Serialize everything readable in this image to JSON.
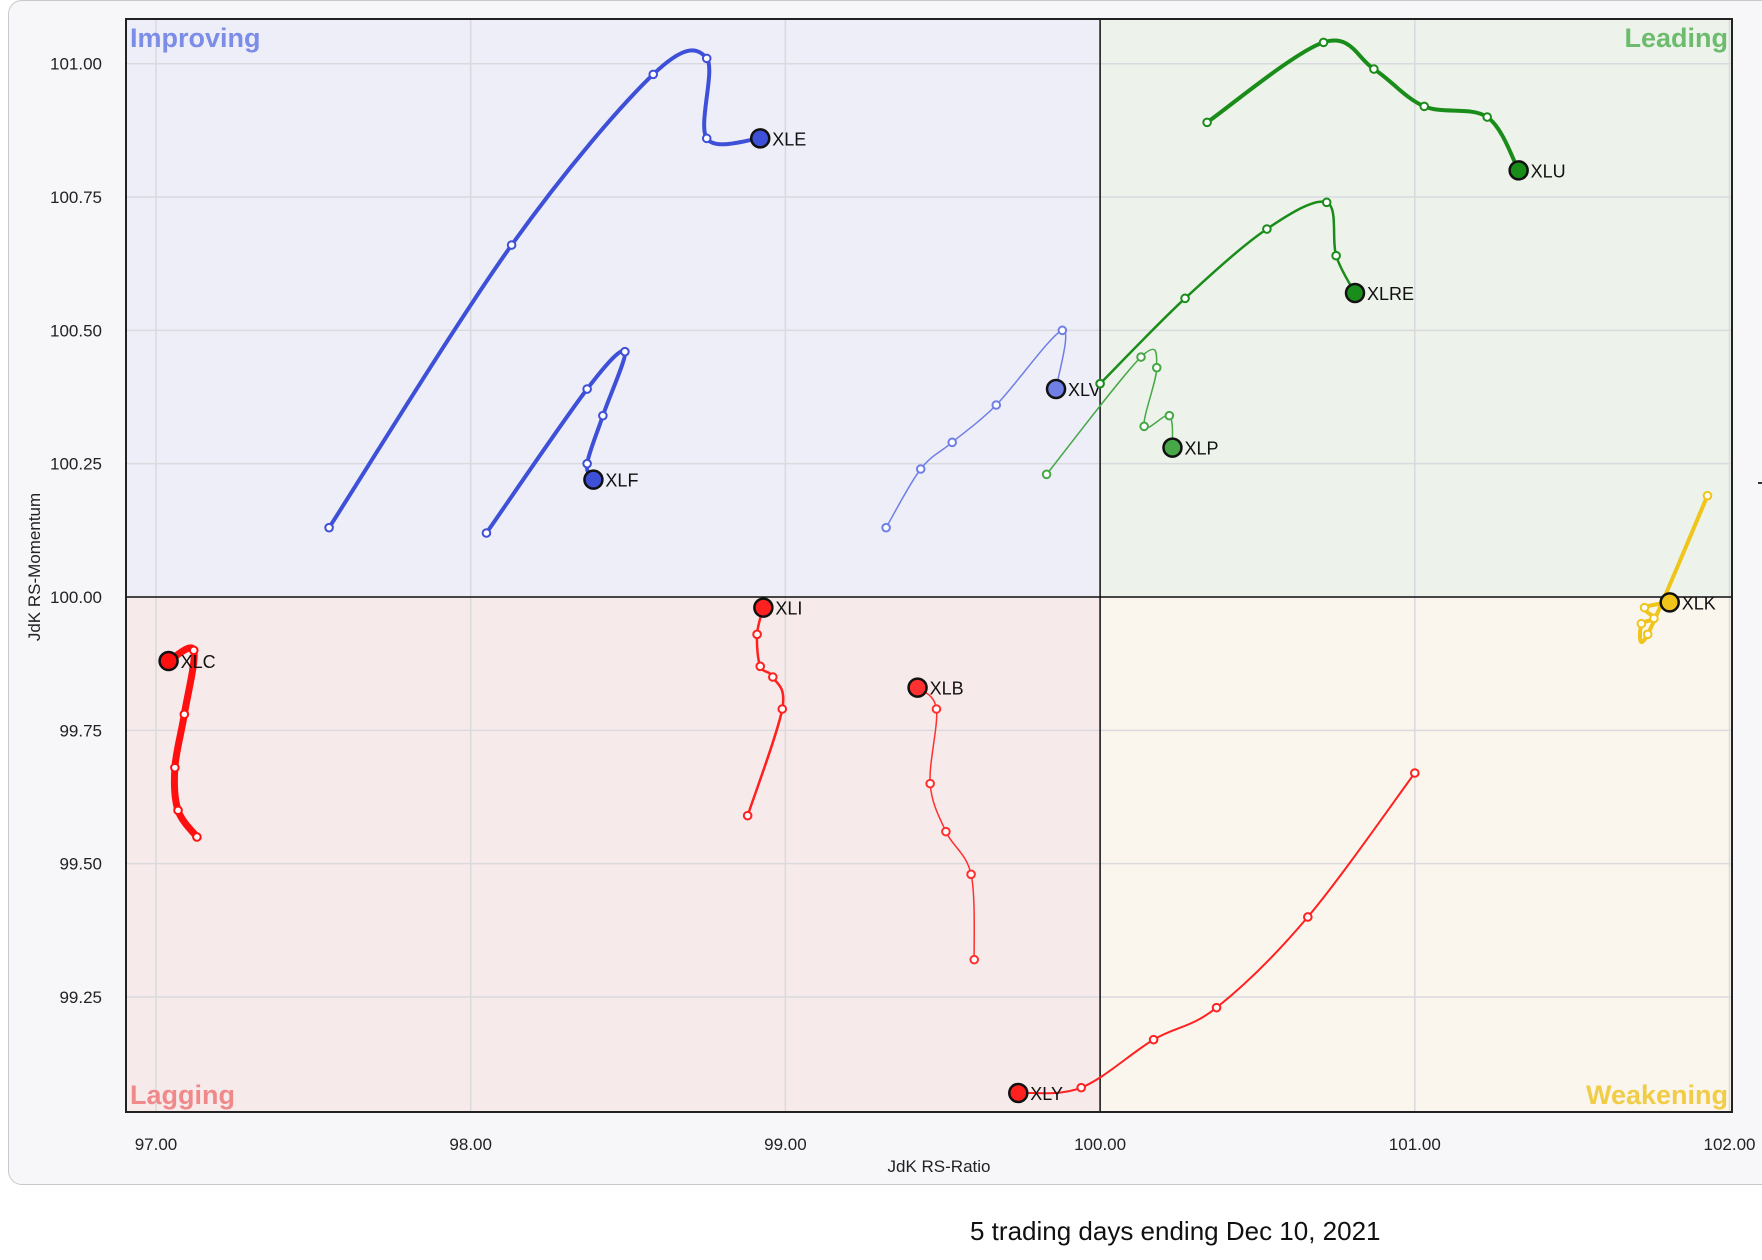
{
  "footer": {
    "text": "5 trading days ending Dec 10, 2021"
  },
  "chart_data": {
    "type": "scatter",
    "subtype": "relative-rotation-graph",
    "xlabel": "JdK RS-Ratio",
    "ylabel": "JdK RS-Momentum",
    "xlim": [
      96.9,
      102.0
    ],
    "ylim": [
      99.0,
      101.1
    ],
    "x_ticks": [
      97.0,
      98.0,
      99.0,
      100.0,
      101.0,
      102.0
    ],
    "y_ticks": [
      99.25,
      99.5,
      99.75,
      100.0,
      100.25,
      100.5,
      100.75,
      101.0
    ],
    "x_tick_labels": [
      "97.00",
      "98.00",
      "99.00",
      "100.00",
      "101.00",
      "102.00"
    ],
    "y_tick_labels": [
      "99.25",
      "99.50",
      "99.75",
      "100.00",
      "100.25",
      "100.50",
      "100.75",
      "101.00"
    ],
    "grid": true,
    "center": [
      100.0,
      100.0
    ],
    "quadrants": [
      {
        "label": "Improving",
        "position": "top-left",
        "background": "#eeeef8",
        "color": "#7b8de6"
      },
      {
        "label": "Leading",
        "position": "top-right",
        "background": "#edf3ea",
        "color": "#6dbb6d"
      },
      {
        "label": "Lagging",
        "position": "bottom-left",
        "background": "#f7eaea",
        "color": "#f08a8a"
      },
      {
        "label": "Weakening",
        "position": "bottom-right",
        "background": "#faf6ed",
        "color": "#f1cc47"
      }
    ],
    "series": [
      {
        "name": "XLE",
        "color": "#3e50d8",
        "width": 4,
        "points": [
          [
            97.55,
            100.13
          ],
          [
            98.13,
            100.66
          ],
          [
            98.58,
            100.98
          ],
          [
            98.75,
            101.01
          ],
          [
            98.75,
            100.86
          ],
          [
            98.92,
            100.86
          ]
        ]
      },
      {
        "name": "XLF",
        "color": "#3e50d8",
        "width": 4,
        "points": [
          [
            98.05,
            100.12
          ],
          [
            98.37,
            100.39
          ],
          [
            98.49,
            100.46
          ],
          [
            98.42,
            100.34
          ],
          [
            98.37,
            100.25
          ],
          [
            98.39,
            100.22
          ]
        ]
      },
      {
        "name": "XLV",
        "color": "#6f7fe6",
        "width": 1.5,
        "points": [
          [
            99.32,
            100.13
          ],
          [
            99.43,
            100.24
          ],
          [
            99.53,
            100.29
          ],
          [
            99.67,
            100.36
          ],
          [
            99.88,
            100.5
          ],
          [
            99.86,
            100.39
          ]
        ]
      },
      {
        "name": "XLU",
        "color": "#1a8c1a",
        "width": 4,
        "points": [
          [
            100.34,
            100.89
          ],
          [
            100.71,
            101.04
          ],
          [
            100.87,
            100.99
          ],
          [
            101.03,
            100.92
          ],
          [
            101.23,
            100.9
          ],
          [
            101.33,
            100.8
          ]
        ]
      },
      {
        "name": "XLRE",
        "color": "#1a8c1a",
        "width": 2.5,
        "points": [
          [
            100.0,
            100.4
          ],
          [
            100.27,
            100.56
          ],
          [
            100.53,
            100.69
          ],
          [
            100.72,
            100.74
          ],
          [
            100.75,
            100.64
          ],
          [
            100.81,
            100.57
          ]
        ]
      },
      {
        "name": "XLP",
        "color": "#46a846",
        "width": 1.5,
        "points": [
          [
            99.83,
            100.23
          ],
          [
            100.13,
            100.45
          ],
          [
            100.18,
            100.43
          ],
          [
            100.14,
            100.32
          ],
          [
            100.22,
            100.34
          ],
          [
            100.23,
            100.28
          ]
        ]
      },
      {
        "name": "XLK",
        "color": "#f0c419",
        "width": 4,
        "points": [
          [
            101.93,
            100.19
          ],
          [
            101.74,
            99.93
          ],
          [
            101.72,
            99.95
          ],
          [
            101.76,
            99.96
          ],
          [
            101.73,
            99.98
          ],
          [
            101.81,
            99.99
          ]
        ]
      },
      {
        "name": "XLC",
        "color": "#ff1010",
        "width": 7,
        "points": [
          [
            97.13,
            99.55
          ],
          [
            97.07,
            99.6
          ],
          [
            97.06,
            99.68
          ],
          [
            97.09,
            99.78
          ],
          [
            97.12,
            99.9
          ],
          [
            97.04,
            99.88
          ]
        ]
      },
      {
        "name": "XLI",
        "color": "#ff2020",
        "width": 2.5,
        "points": [
          [
            98.88,
            99.59
          ],
          [
            98.99,
            99.79
          ],
          [
            98.96,
            99.85
          ],
          [
            98.92,
            99.87
          ],
          [
            98.91,
            99.93
          ],
          [
            98.93,
            99.98
          ]
        ]
      },
      {
        "name": "XLB",
        "color": "#ff3030",
        "width": 1.5,
        "points": [
          [
            99.6,
            99.32
          ],
          [
            99.59,
            99.48
          ],
          [
            99.51,
            99.56
          ],
          [
            99.46,
            99.65
          ],
          [
            99.48,
            99.79
          ],
          [
            99.42,
            99.83
          ]
        ]
      },
      {
        "name": "XLY",
        "color": "#ff2020",
        "width": 2,
        "points": [
          [
            101.0,
            99.67
          ],
          [
            100.66,
            99.4
          ],
          [
            100.37,
            99.23
          ],
          [
            100.17,
            99.17
          ],
          [
            99.94,
            99.08
          ],
          [
            99.74,
            99.07
          ]
        ]
      }
    ]
  }
}
